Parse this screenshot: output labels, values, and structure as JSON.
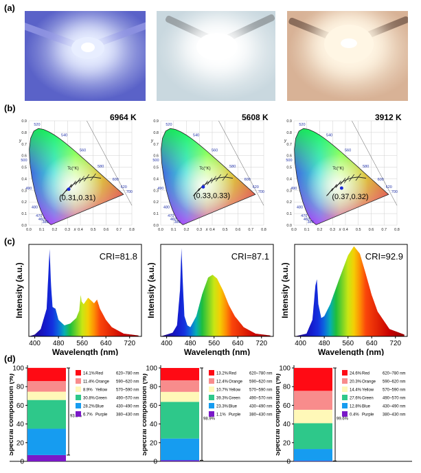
{
  "panel_labels": {
    "a": "(a)",
    "b": "(b)",
    "c": "(c)",
    "d": "(d)"
  },
  "photos": [
    {
      "name": "photo-led-cool",
      "bg": "#5a62c8",
      "glow": "#e8eeff"
    },
    {
      "name": "photo-led-neutral",
      "bg": "#c9d8df",
      "glow": "#ffffff"
    },
    {
      "name": "photo-led-warm",
      "bg": "#d8b296",
      "glow": "#fff6e4"
    }
  ],
  "cie": {
    "x_ticks": [
      "0.0",
      "0.1",
      "0.2",
      "0.3",
      "0.4",
      "0.5",
      "0.6",
      "0.7",
      "0.8"
    ],
    "y_ticks": [
      "0.0",
      "0.1",
      "0.2",
      "0.3",
      "0.4",
      "0.5",
      "0.6",
      "0.7",
      "0.8",
      "0.9"
    ],
    "x_axis_label": "x",
    "y_axis_label": "y",
    "locus_labels": [
      "520",
      "540",
      "560",
      "580",
      "600",
      "620",
      "700",
      "500",
      "490",
      "480",
      "470",
      "460",
      "380"
    ],
    "tc_label": "Tc(°K)",
    "panels": [
      {
        "cct": "6964 K",
        "coord": "(0.31,0.31)",
        "x": 0.31,
        "y": 0.31
      },
      {
        "cct": "5608 K",
        "coord": "(0.33,0.33)",
        "x": 0.33,
        "y": 0.33
      },
      {
        "cct": "3912 K",
        "coord": "(0.37,0.32)",
        "x": 0.37,
        "y": 0.32
      }
    ]
  },
  "spectra": {
    "ylabel": "Intensity (a.u.)",
    "xlabel": "Wavelength (nm)",
    "x_ticks": [
      "400",
      "480",
      "560",
      "640",
      "720"
    ]
  },
  "composition": {
    "ylabel": "Spectral composition (%)",
    "y_ticks": [
      "0",
      "20",
      "40",
      "60",
      "80",
      "100"
    ],
    "colors": {
      "Red": "#ff0a14",
      "Orange": "#f88c8c",
      "Yellow": "#fff8b8",
      "Green": "#2ec88a",
      "Blue": "#169cf0",
      "Purple": "#7a18c8"
    }
  },
  "chart_data": [
    {
      "type": "line",
      "title": "",
      "annotation": "CRI=81.8",
      "xlabel": "Wavelength (nm)",
      "ylabel": "Intensity (a.u.)",
      "xlim": [
        380,
        760
      ],
      "series": [
        {
          "x": [
            380,
            400,
            420,
            440,
            450,
            455,
            460,
            470,
            480,
            500,
            520,
            540,
            550,
            555,
            558,
            565,
            580,
            600,
            610,
            620,
            630,
            640,
            660,
            700,
            750
          ],
          "y": [
            0,
            0.02,
            0.08,
            0.3,
            0.95,
            0.55,
            0.32,
            0.3,
            0.18,
            0.12,
            0.14,
            0.2,
            0.28,
            0.45,
            0.38,
            0.35,
            0.42,
            0.36,
            0.4,
            0.3,
            0.24,
            0.18,
            0.1,
            0.03,
            0.01
          ]
        }
      ]
    },
    {
      "type": "line",
      "title": "",
      "annotation": "CRI=87.1",
      "xlabel": "Wavelength (nm)",
      "ylabel": "Intensity (a.u.)",
      "xlim": [
        380,
        760
      ],
      "series": [
        {
          "x": [
            380,
            420,
            435,
            445,
            450,
            455,
            460,
            470,
            480,
            500,
            520,
            540,
            555,
            570,
            590,
            610,
            630,
            660,
            700,
            750
          ],
          "y": [
            0,
            0.04,
            0.12,
            0.5,
            0.96,
            0.55,
            0.22,
            0.12,
            0.1,
            0.22,
            0.46,
            0.64,
            0.67,
            0.63,
            0.5,
            0.34,
            0.22,
            0.1,
            0.03,
            0.01
          ]
        }
      ]
    },
    {
      "type": "line",
      "title": "",
      "annotation": "CRI=92.9",
      "xlabel": "Wavelength (nm)",
      "ylabel": "Intensity (a.u.)",
      "xlim": [
        380,
        760
      ],
      "series": [
        {
          "x": [
            380,
            420,
            440,
            450,
            455,
            460,
            470,
            480,
            500,
            530,
            560,
            580,
            600,
            620,
            640,
            660,
            700,
            750
          ],
          "y": [
            0,
            0.03,
            0.18,
            0.55,
            0.62,
            0.35,
            0.2,
            0.22,
            0.35,
            0.62,
            0.88,
            0.98,
            0.9,
            0.68,
            0.45,
            0.27,
            0.08,
            0.02
          ]
        }
      ]
    },
    {
      "type": "bar",
      "title": "",
      "stacked": true,
      "ylabel": "Spectral composition (%)",
      "ylim": [
        0,
        100
      ],
      "bracket_label": "93.3%",
      "segments": [
        {
          "percent": "6.7%",
          "name": "Purple",
          "range": "380~430 nm",
          "value": 6.7
        },
        {
          "percent": "28.2%",
          "name": "Blue",
          "range": "430~490 nm",
          "value": 28.2
        },
        {
          "percent": "30.8%",
          "name": "Green",
          "range": "490~570 nm",
          "value": 30.8
        },
        {
          "percent": "8.9%",
          "name": "Yellow",
          "range": "570~590 nm",
          "value": 8.9
        },
        {
          "percent": "11.4%",
          "name": "Orange",
          "range": "590~620 nm",
          "value": 11.4
        },
        {
          "percent": "14.1%",
          "name": "Red",
          "range": "620~780 nm",
          "value": 14.1
        }
      ]
    },
    {
      "type": "bar",
      "title": "",
      "stacked": true,
      "ylabel": "Spectral composition (%)",
      "ylim": [
        0,
        100
      ],
      "bracket_label": "98.9%",
      "segments": [
        {
          "percent": "1.1%",
          "name": "Purple",
          "range": "380~430 nm",
          "value": 1.1
        },
        {
          "percent": "23.3%",
          "name": "Blue",
          "range": "430~490 nm",
          "value": 23.3
        },
        {
          "percent": "39.3%",
          "name": "Green",
          "range": "490~570 nm",
          "value": 39.3
        },
        {
          "percent": "10.7%",
          "name": "Yellow",
          "range": "570~590 nm",
          "value": 10.7
        },
        {
          "percent": "12.4%",
          "name": "Orange",
          "range": "590~620 nm",
          "value": 12.4
        },
        {
          "percent": "13.2%",
          "name": "Red",
          "range": "620~780 nm",
          "value": 13.2
        }
      ]
    },
    {
      "type": "bar",
      "title": "",
      "stacked": true,
      "ylabel": "Spectral composition (%)",
      "ylim": [
        0,
        100
      ],
      "bracket_label": "99.6%",
      "segments": [
        {
          "percent": "0.4%",
          "name": "Purple",
          "range": "380~430 nm",
          "value": 0.4
        },
        {
          "percent": "12.8%",
          "name": "Blue",
          "range": "430~490 nm",
          "value": 12.8
        },
        {
          "percent": "27.6%",
          "name": "Green",
          "range": "490~570 nm",
          "value": 27.6
        },
        {
          "percent": "14.4%",
          "name": "Yellow",
          "range": "570~590 nm",
          "value": 14.4
        },
        {
          "percent": "20.3%",
          "name": "Orange",
          "range": "590~620 nm",
          "value": 20.3
        },
        {
          "percent": "24.6%",
          "name": "Red",
          "range": "620~780 nm",
          "value": 24.6
        }
      ]
    }
  ]
}
